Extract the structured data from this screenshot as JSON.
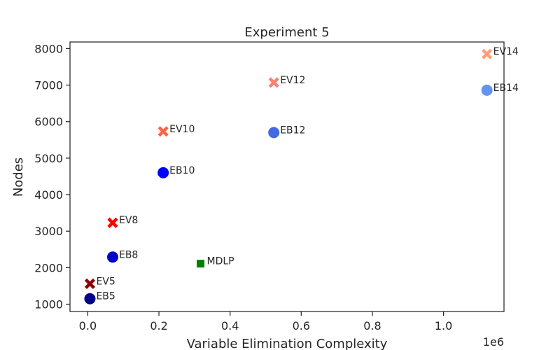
{
  "chart_data": {
    "type": "scatter",
    "title": "Experiment 5",
    "xlabel": "Variable Elimination Complexity",
    "ylabel": "Nodes",
    "x_offset_label": "1e6",
    "xlim": [
      -0.05,
      1.17
    ],
    "ylim": [
      800,
      8180
    ],
    "x_ticks": [
      0.0,
      0.2,
      0.4,
      0.6,
      0.8,
      1.0
    ],
    "x_tick_labels": [
      "0.0",
      "0.2",
      "0.4",
      "0.6",
      "0.8",
      "1.0"
    ],
    "y_ticks": [
      1000,
      2000,
      3000,
      4000,
      5000,
      6000,
      7000,
      8000
    ],
    "y_tick_labels": [
      "1000",
      "2000",
      "3000",
      "4000",
      "5000",
      "6000",
      "7000",
      "8000"
    ],
    "grid": false,
    "points": [
      {
        "label": "EB5",
        "x": 0.006,
        "y": 1150,
        "marker": "circle",
        "color": "#00008b"
      },
      {
        "label": "EV5",
        "x": 0.006,
        "y": 1560,
        "marker": "x",
        "color": "#8b0000"
      },
      {
        "label": "EB8",
        "x": 0.07,
        "y": 2290,
        "marker": "circle",
        "color": "#0000cd"
      },
      {
        "label": "EV8",
        "x": 0.07,
        "y": 3230,
        "marker": "x",
        "color": "#ff0000"
      },
      {
        "label": "EB10",
        "x": 0.212,
        "y": 4600,
        "marker": "circle",
        "color": "#0000ff"
      },
      {
        "label": "EV10",
        "x": 0.212,
        "y": 5730,
        "marker": "x",
        "color": "#ff6347"
      },
      {
        "label": "EB12",
        "x": 0.523,
        "y": 5700,
        "marker": "circle",
        "color": "#4169e1"
      },
      {
        "label": "EV12",
        "x": 0.523,
        "y": 7070,
        "marker": "x",
        "color": "#fa8072"
      },
      {
        "label": "EB14",
        "x": 1.122,
        "y": 6860,
        "marker": "circle",
        "color": "#6495ed"
      },
      {
        "label": "EV14",
        "x": 1.122,
        "y": 7850,
        "marker": "x",
        "color": "#ffa07a"
      },
      {
        "label": "MDLP",
        "x": 0.317,
        "y": 2110,
        "marker": "square",
        "color": "#008000"
      }
    ]
  }
}
